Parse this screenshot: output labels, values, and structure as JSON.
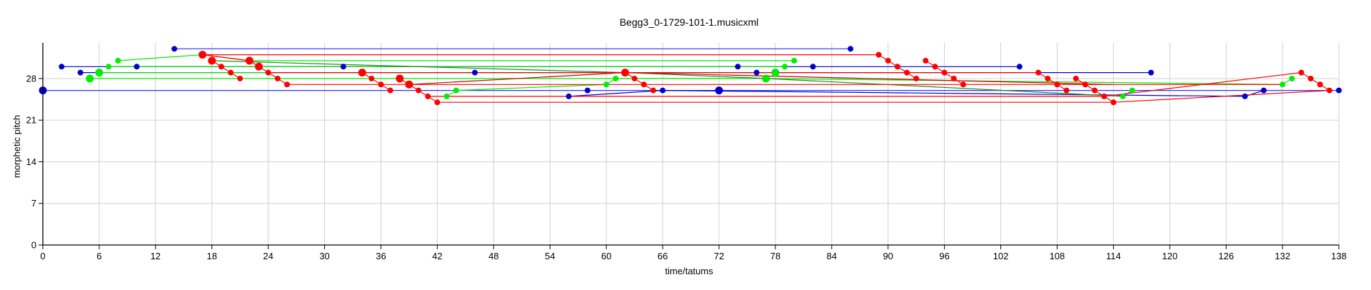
{
  "chart_data": {
    "type": "scatter",
    "title": "Begg3_0-1729-101-1.musicxml",
    "xlabel": "time/tatums",
    "ylabel": "morphetic pitch",
    "xlim": [
      0,
      138
    ],
    "ylim": [
      0,
      34
    ],
    "xticks": [
      0,
      6,
      12,
      18,
      24,
      30,
      36,
      42,
      48,
      54,
      60,
      66,
      72,
      78,
      84,
      90,
      96,
      102,
      108,
      114,
      120,
      126,
      132,
      138
    ],
    "yticks": [
      0,
      7,
      14,
      21,
      28
    ],
    "grid": true,
    "colors": {
      "blue": "#0000cc",
      "bright_blue": "#3333ff",
      "red": "#ff0000",
      "dark_red": "#cc0000",
      "green": "#00ee00",
      "dark_green": "#228822"
    },
    "lines": [
      {
        "color": "bright_blue",
        "points": [
          [
            14,
            33
          ],
          [
            86,
            33
          ]
        ]
      },
      {
        "color": "bright_blue",
        "points": [
          [
            0,
            26
          ],
          [
            72,
            26
          ],
          [
            138,
            26
          ]
        ]
      },
      {
        "color": "blue",
        "points": [
          [
            2,
            30
          ],
          [
            10,
            30
          ],
          [
            32,
            30
          ],
          [
            74,
            30
          ],
          [
            82,
            30
          ],
          [
            104,
            30
          ]
        ]
      },
      {
        "color": "blue",
        "points": [
          [
            4,
            29
          ],
          [
            46,
            29
          ],
          [
            76,
            29
          ],
          [
            118,
            29
          ]
        ]
      },
      {
        "color": "blue",
        "points": [
          [
            56,
            25
          ],
          [
            66,
            26
          ],
          [
            128,
            25
          ],
          [
            130,
            26
          ]
        ]
      },
      {
        "color": "green",
        "points": [
          [
            8,
            31
          ],
          [
            17,
            32
          ],
          [
            22,
            31
          ],
          [
            80,
            31
          ]
        ]
      },
      {
        "color": "green",
        "points": [
          [
            7,
            30
          ],
          [
            23,
            30
          ],
          [
            79,
            30
          ]
        ]
      },
      {
        "color": "green",
        "points": [
          [
            6,
            29
          ],
          [
            34,
            29
          ],
          [
            78,
            29
          ]
        ]
      },
      {
        "color": "green",
        "points": [
          [
            5,
            28
          ],
          [
            38,
            28
          ],
          [
            77,
            28
          ]
        ]
      },
      {
        "color": "green",
        "points": [
          [
            43,
            25
          ],
          [
            44,
            26
          ],
          [
            60,
            27
          ],
          [
            61,
            28
          ],
          [
            77,
            28
          ],
          [
            132,
            27
          ],
          [
            133,
            28
          ]
        ]
      },
      {
        "color": "dark_green",
        "points": [
          [
            18,
            31
          ],
          [
            62,
            29
          ],
          [
            77,
            28
          ],
          [
            115,
            25
          ],
          [
            116,
            26
          ]
        ]
      },
      {
        "color": "red",
        "points": [
          [
            17,
            32
          ],
          [
            22,
            31
          ],
          [
            23,
            30
          ],
          [
            24,
            29
          ],
          [
            25,
            28
          ],
          [
            26,
            27
          ]
        ]
      },
      {
        "color": "red",
        "points": [
          [
            18,
            31
          ],
          [
            19,
            30
          ],
          [
            20,
            29
          ],
          [
            21,
            28
          ]
        ]
      },
      {
        "color": "red",
        "points": [
          [
            34,
            29
          ],
          [
            35,
            28
          ],
          [
            36,
            27
          ],
          [
            37,
            26
          ]
        ]
      },
      {
        "color": "red",
        "points": [
          [
            38,
            28
          ],
          [
            39,
            27
          ],
          [
            40,
            26
          ],
          [
            41,
            25
          ],
          [
            42,
            24
          ]
        ]
      },
      {
        "color": "dark_red",
        "points": [
          [
            39,
            27
          ],
          [
            62,
            29
          ],
          [
            114,
            27
          ]
        ]
      },
      {
        "color": "red",
        "points": [
          [
            62,
            29
          ],
          [
            63,
            28
          ],
          [
            64,
            27
          ],
          [
            65,
            26
          ]
        ]
      },
      {
        "color": "red",
        "points": [
          [
            89,
            32
          ],
          [
            90,
            31
          ],
          [
            91,
            30
          ],
          [
            92,
            29
          ],
          [
            93,
            28
          ]
        ]
      },
      {
        "color": "red",
        "points": [
          [
            94,
            31
          ],
          [
            95,
            30
          ],
          [
            96,
            29
          ],
          [
            97,
            28
          ],
          [
            98,
            27
          ]
        ]
      },
      {
        "color": "red",
        "points": [
          [
            106,
            29
          ],
          [
            107,
            28
          ],
          [
            108,
            27
          ],
          [
            109,
            26
          ]
        ]
      },
      {
        "color": "red",
        "points": [
          [
            110,
            28
          ],
          [
            111,
            27
          ],
          [
            112,
            26
          ],
          [
            113,
            25
          ],
          [
            114,
            24
          ]
        ]
      },
      {
        "color": "red",
        "points": [
          [
            134,
            29
          ],
          [
            135,
            28
          ],
          [
            136,
            27
          ],
          [
            137,
            26
          ]
        ]
      },
      {
        "color": "red",
        "points": [
          [
            17,
            32
          ],
          [
            89,
            32
          ]
        ]
      },
      {
        "color": "red",
        "points": [
          [
            24,
            29
          ],
          [
            106,
            29
          ]
        ]
      },
      {
        "color": "red",
        "points": [
          [
            26,
            27
          ],
          [
            98,
            27
          ],
          [
            114,
            27
          ],
          [
            132,
            27
          ]
        ]
      },
      {
        "color": "red",
        "points": [
          [
            42,
            24
          ],
          [
            114,
            24
          ],
          [
            137,
            26
          ]
        ]
      },
      {
        "color": "red",
        "points": [
          [
            41,
            25
          ],
          [
            113,
            25
          ],
          [
            134,
            29
          ]
        ]
      }
    ],
    "points": [
      {
        "x": 0,
        "y": 26,
        "color": "blue",
        "size": "large"
      },
      {
        "x": 2,
        "y": 30,
        "color": "blue",
        "size": "small"
      },
      {
        "x": 4,
        "y": 29,
        "color": "blue",
        "size": "small"
      },
      {
        "x": 10,
        "y": 30,
        "color": "blue",
        "size": "small"
      },
      {
        "x": 14,
        "y": 33,
        "color": "blue",
        "size": "small"
      },
      {
        "x": 32,
        "y": 30,
        "color": "blue",
        "size": "small"
      },
      {
        "x": 46,
        "y": 29,
        "color": "blue",
        "size": "small"
      },
      {
        "x": 56,
        "y": 25,
        "color": "blue",
        "size": "small"
      },
      {
        "x": 58,
        "y": 26,
        "color": "blue",
        "size": "small"
      },
      {
        "x": 66,
        "y": 26,
        "color": "blue",
        "size": "small"
      },
      {
        "x": 72,
        "y": 26,
        "color": "blue",
        "size": "large"
      },
      {
        "x": 74,
        "y": 30,
        "color": "blue",
        "size": "small"
      },
      {
        "x": 76,
        "y": 29,
        "color": "blue",
        "size": "small"
      },
      {
        "x": 82,
        "y": 30,
        "color": "blue",
        "size": "small"
      },
      {
        "x": 86,
        "y": 33,
        "color": "blue",
        "size": "small"
      },
      {
        "x": 104,
        "y": 30,
        "color": "blue",
        "size": "small"
      },
      {
        "x": 118,
        "y": 29,
        "color": "blue",
        "size": "small"
      },
      {
        "x": 128,
        "y": 25,
        "color": "blue",
        "size": "small"
      },
      {
        "x": 130,
        "y": 26,
        "color": "blue",
        "size": "small"
      },
      {
        "x": 138,
        "y": 26,
        "color": "blue",
        "size": "small"
      },
      {
        "x": 5,
        "y": 28,
        "color": "green",
        "size": "large"
      },
      {
        "x": 6,
        "y": 29,
        "color": "green",
        "size": "large"
      },
      {
        "x": 7,
        "y": 30,
        "color": "green",
        "size": "small"
      },
      {
        "x": 8,
        "y": 31,
        "color": "green",
        "size": "small"
      },
      {
        "x": 43,
        "y": 25,
        "color": "green",
        "size": "small"
      },
      {
        "x": 44,
        "y": 26,
        "color": "green",
        "size": "small"
      },
      {
        "x": 60,
        "y": 27,
        "color": "green",
        "size": "small"
      },
      {
        "x": 61,
        "y": 28,
        "color": "green",
        "size": "small"
      },
      {
        "x": 77,
        "y": 28,
        "color": "green",
        "size": "large"
      },
      {
        "x": 78,
        "y": 29,
        "color": "green",
        "size": "large"
      },
      {
        "x": 79,
        "y": 30,
        "color": "green",
        "size": "small"
      },
      {
        "x": 80,
        "y": 31,
        "color": "green",
        "size": "small"
      },
      {
        "x": 115,
        "y": 25,
        "color": "green",
        "size": "small"
      },
      {
        "x": 116,
        "y": 26,
        "color": "green",
        "size": "small"
      },
      {
        "x": 132,
        "y": 27,
        "color": "green",
        "size": "small"
      },
      {
        "x": 133,
        "y": 28,
        "color": "green",
        "size": "small"
      },
      {
        "x": 17,
        "y": 32,
        "color": "red",
        "size": "large"
      },
      {
        "x": 18,
        "y": 31,
        "color": "red",
        "size": "large"
      },
      {
        "x": 19,
        "y": 30,
        "color": "red",
        "size": "small"
      },
      {
        "x": 20,
        "y": 29,
        "color": "red",
        "size": "small"
      },
      {
        "x": 21,
        "y": 28,
        "color": "red",
        "size": "small"
      },
      {
        "x": 22,
        "y": 31,
        "color": "red",
        "size": "large"
      },
      {
        "x": 23,
        "y": 30,
        "color": "red",
        "size": "large"
      },
      {
        "x": 24,
        "y": 29,
        "color": "red",
        "size": "small"
      },
      {
        "x": 25,
        "y": 28,
        "color": "red",
        "size": "small"
      },
      {
        "x": 26,
        "y": 27,
        "color": "red",
        "size": "small"
      },
      {
        "x": 34,
        "y": 29,
        "color": "red",
        "size": "large"
      },
      {
        "x": 35,
        "y": 28,
        "color": "red",
        "size": "small"
      },
      {
        "x": 36,
        "y": 27,
        "color": "red",
        "size": "small"
      },
      {
        "x": 37,
        "y": 26,
        "color": "red",
        "size": "small"
      },
      {
        "x": 38,
        "y": 28,
        "color": "red",
        "size": "large"
      },
      {
        "x": 39,
        "y": 27,
        "color": "red",
        "size": "large"
      },
      {
        "x": 40,
        "y": 26,
        "color": "red",
        "size": "small"
      },
      {
        "x": 41,
        "y": 25,
        "color": "red",
        "size": "small"
      },
      {
        "x": 42,
        "y": 24,
        "color": "red",
        "size": "small"
      },
      {
        "x": 62,
        "y": 29,
        "color": "red",
        "size": "large"
      },
      {
        "x": 63,
        "y": 28,
        "color": "red",
        "size": "small"
      },
      {
        "x": 64,
        "y": 27,
        "color": "red",
        "size": "small"
      },
      {
        "x": 65,
        "y": 26,
        "color": "red",
        "size": "small"
      },
      {
        "x": 89,
        "y": 32,
        "color": "red",
        "size": "small"
      },
      {
        "x": 90,
        "y": 31,
        "color": "red",
        "size": "small"
      },
      {
        "x": 91,
        "y": 30,
        "color": "red",
        "size": "small"
      },
      {
        "x": 92,
        "y": 29,
        "color": "red",
        "size": "small"
      },
      {
        "x": 93,
        "y": 28,
        "color": "red",
        "size": "small"
      },
      {
        "x": 94,
        "y": 31,
        "color": "red",
        "size": "small"
      },
      {
        "x": 95,
        "y": 30,
        "color": "red",
        "size": "small"
      },
      {
        "x": 96,
        "y": 29,
        "color": "red",
        "size": "small"
      },
      {
        "x": 97,
        "y": 28,
        "color": "red",
        "size": "small"
      },
      {
        "x": 98,
        "y": 27,
        "color": "red",
        "size": "small"
      },
      {
        "x": 106,
        "y": 29,
        "color": "red",
        "size": "small"
      },
      {
        "x": 107,
        "y": 28,
        "color": "red",
        "size": "small"
      },
      {
        "x": 108,
        "y": 27,
        "color": "red",
        "size": "small"
      },
      {
        "x": 109,
        "y": 26,
        "color": "red",
        "size": "small"
      },
      {
        "x": 110,
        "y": 28,
        "color": "red",
        "size": "small"
      },
      {
        "x": 111,
        "y": 27,
        "color": "red",
        "size": "small"
      },
      {
        "x": 112,
        "y": 26,
        "color": "red",
        "size": "small"
      },
      {
        "x": 113,
        "y": 25,
        "color": "red",
        "size": "small"
      },
      {
        "x": 114,
        "y": 24,
        "color": "red",
        "size": "small"
      },
      {
        "x": 134,
        "y": 29,
        "color": "red",
        "size": "small"
      },
      {
        "x": 135,
        "y": 28,
        "color": "red",
        "size": "small"
      },
      {
        "x": 136,
        "y": 27,
        "color": "red",
        "size": "small"
      },
      {
        "x": 137,
        "y": 26,
        "color": "red",
        "size": "small"
      }
    ]
  }
}
